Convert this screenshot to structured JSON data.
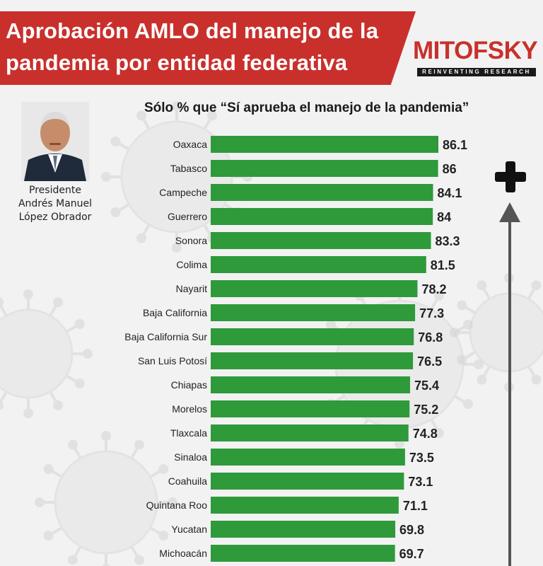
{
  "header": {
    "title_line1": "Aprobación AMLO del manejo de la",
    "title_line2": "pandemia por entidad federativa",
    "banner_color": "#c9302c"
  },
  "logo": {
    "name": "MITOFSKY",
    "tagline": "REINVENTING RESEARCH",
    "color": "#c9302c"
  },
  "person": {
    "caption_line1": "Presidente",
    "caption_line2": "Andrés Manuel",
    "caption_line3": "López Obrador"
  },
  "chart_data": {
    "type": "bar",
    "orientation": "horizontal",
    "subtitle": "Sólo % que “Sí aprueba el manejo de la pandemia”",
    "categories": [
      "Oaxaca",
      "Tabasco",
      "Campeche",
      "Guerrero",
      "Sonora",
      "Colima",
      "Nayarit",
      "Baja California",
      "Baja California Sur",
      "San Luis Potosí",
      "Chiapas",
      "Morelos",
      "Tlaxcala",
      "Sinaloa",
      "Coahuila",
      "Quintana Roo",
      "Yucatan",
      "Michoacán"
    ],
    "values": [
      86.1,
      86,
      84.1,
      84,
      83.3,
      81.5,
      78.2,
      77.3,
      76.8,
      76.5,
      75.4,
      75.2,
      74.8,
      73.5,
      73.1,
      71.1,
      69.8,
      69.7
    ],
    "bar_color": "#2e9a3a",
    "xlim": [
      0,
      86.1
    ],
    "grid": false,
    "data_labels": true
  },
  "decorations": {
    "plus_icon": "plus-icon",
    "arrow_icon": "up-arrow-icon",
    "background": "virus-illustration"
  }
}
